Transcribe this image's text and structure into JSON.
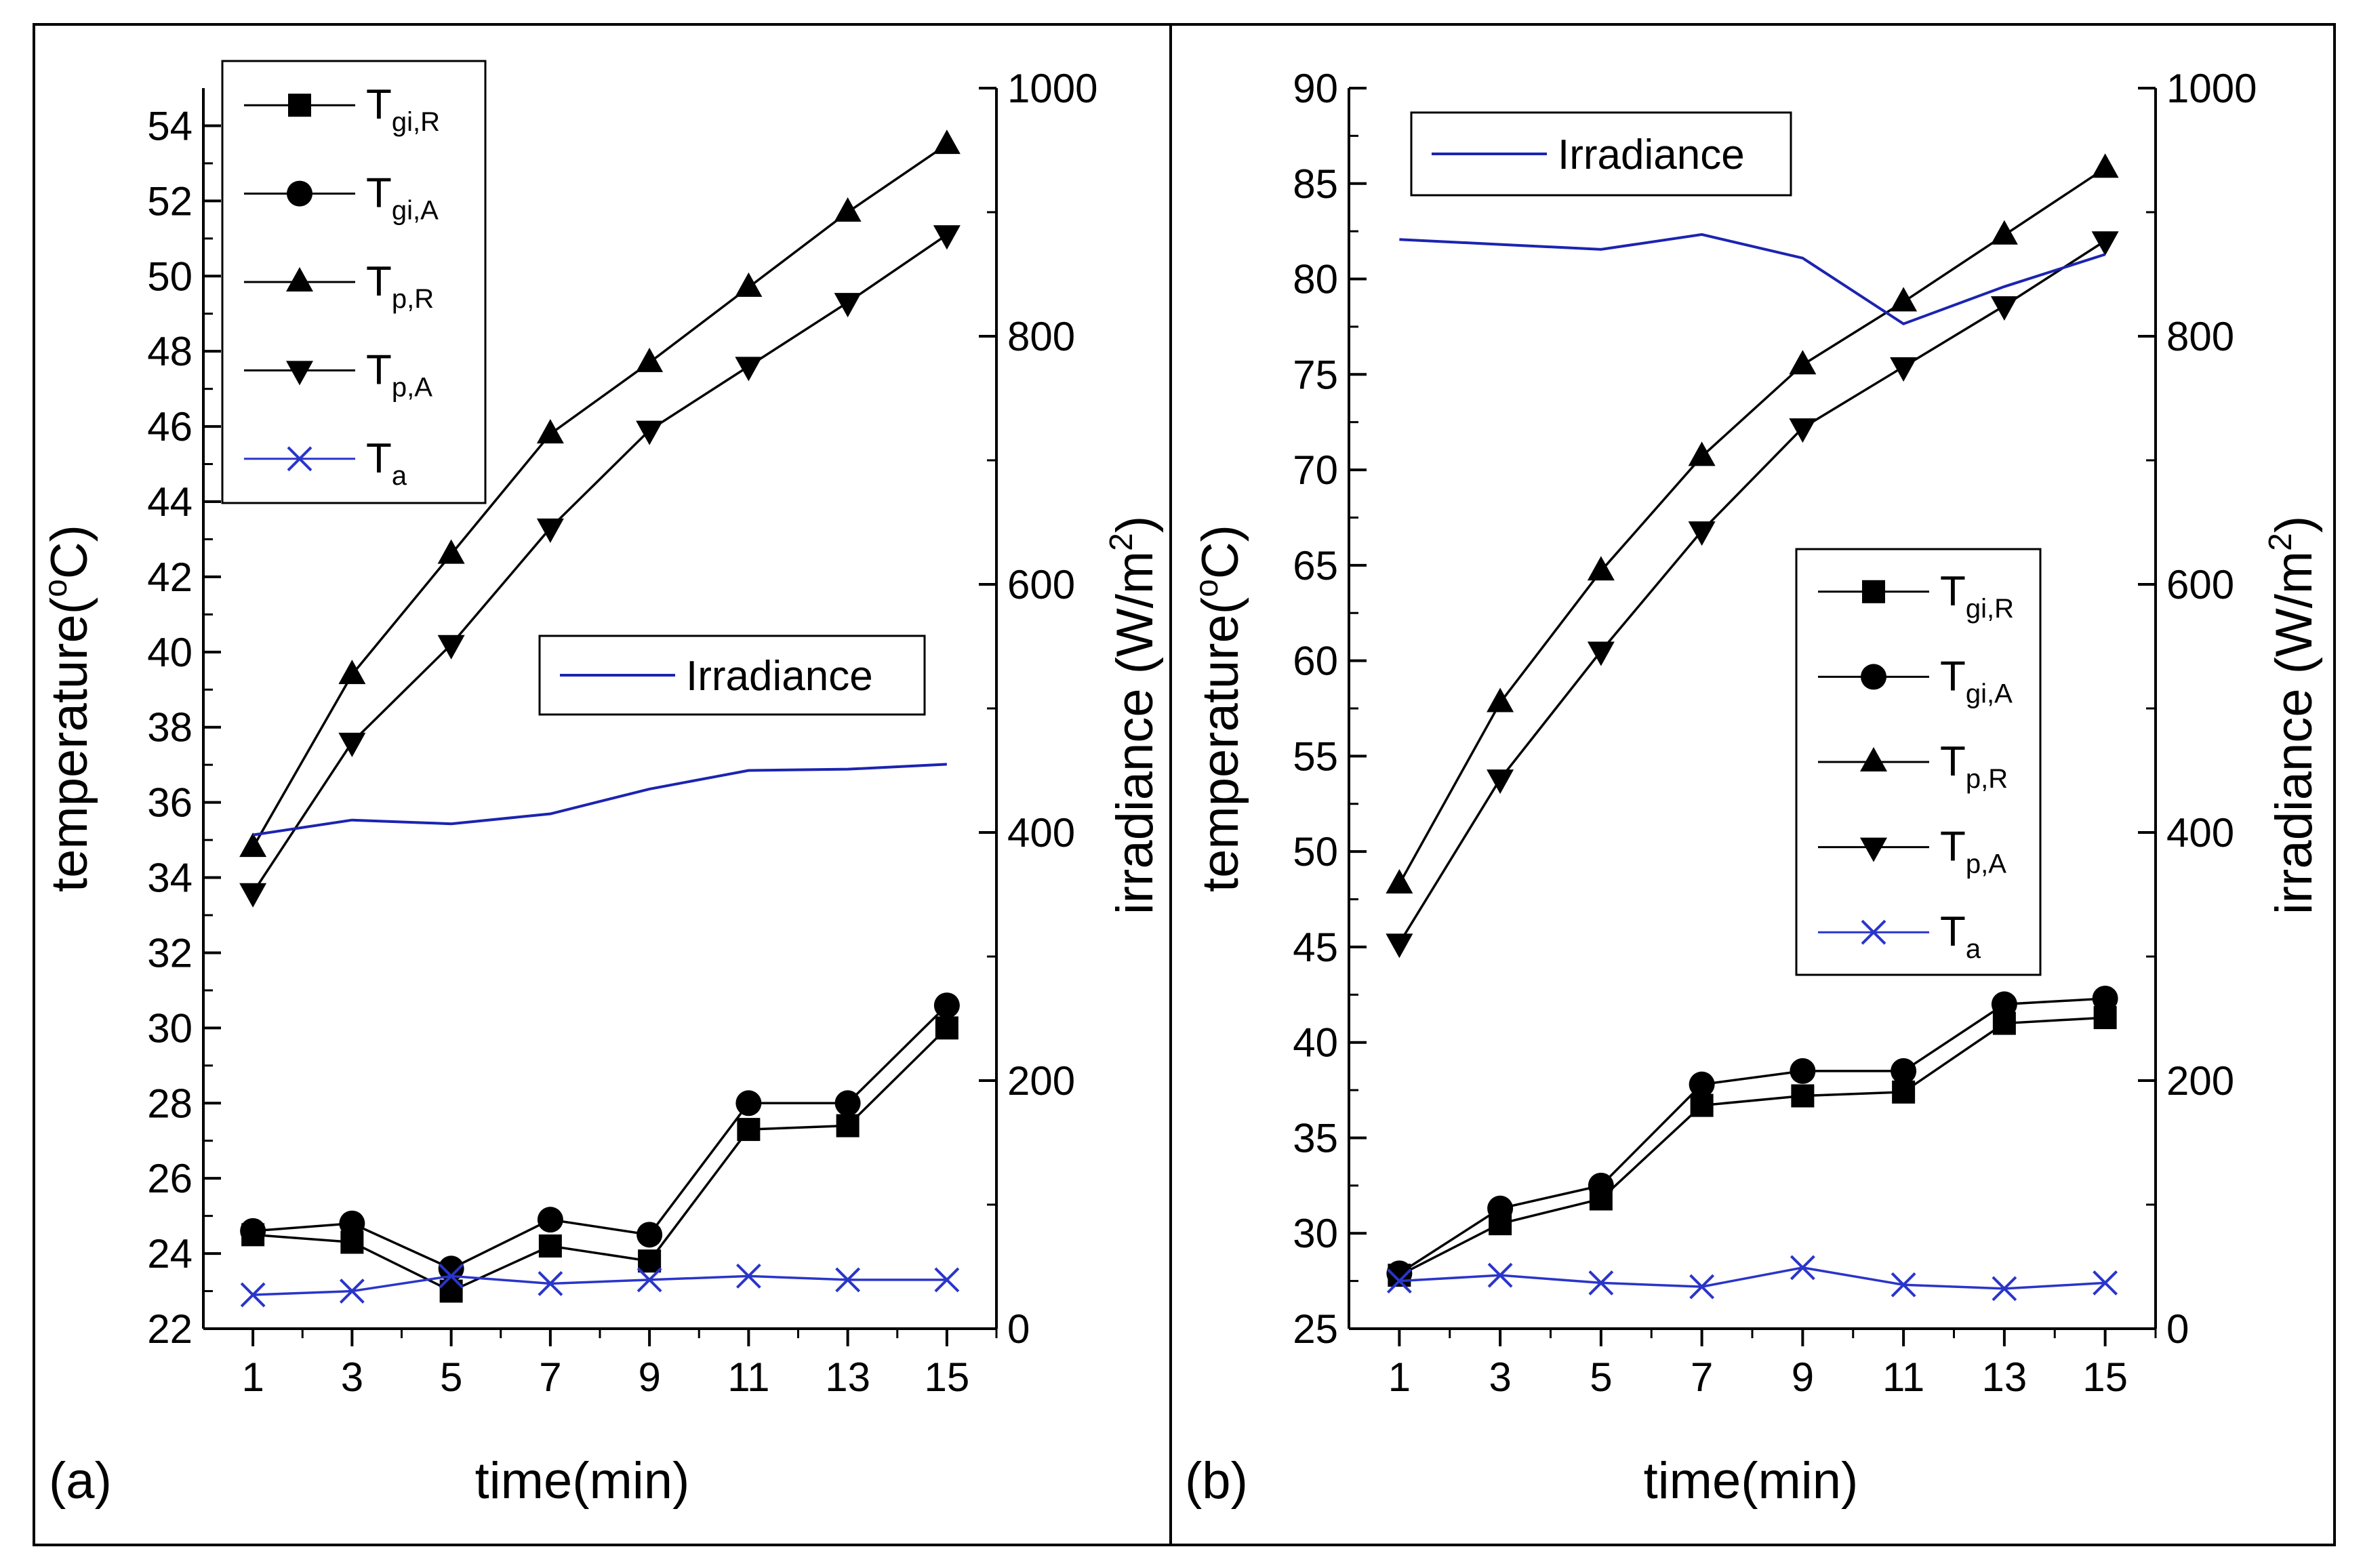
{
  "chart_data": [
    {
      "type": "line",
      "panel_label": "(a)",
      "xlabel": "time(min)",
      "ylabel": "temperature(°C)",
      "y2label": "irradiance (W/m²)",
      "ylabel_main": "temperature(",
      "ylabel_deg": "o",
      "ylabel_unit": "C)",
      "y2label_main": "irradiance (W/m",
      "y2label_sup": "2",
      "y2label_close": ")",
      "x": [
        1,
        3,
        5,
        7,
        9,
        11,
        13,
        15
      ],
      "x_ticks": [
        "1",
        "3",
        "5",
        "7",
        "9",
        "11",
        "13",
        "15"
      ],
      "xlim": [
        0,
        16
      ],
      "ylim": [
        22,
        55
      ],
      "y_ticks": [
        "22",
        "24",
        "26",
        "28",
        "30",
        "32",
        "34",
        "36",
        "38",
        "40",
        "42",
        "44",
        "46",
        "48",
        "50",
        "52",
        "54"
      ],
      "y2lim": [
        0,
        1000
      ],
      "y2_ticks": [
        "0",
        "200",
        "400",
        "600",
        "800",
        "1000"
      ],
      "series": [
        {
          "name": "T gi,R",
          "base": "T",
          "sub": "gi,R",
          "marker": "square",
          "color": "#000000",
          "axis": "left",
          "values": [
            24.5,
            24.3,
            23.0,
            24.2,
            23.8,
            27.3,
            27.4,
            30.0
          ]
        },
        {
          "name": "T gi,A",
          "base": "T",
          "sub": "gi,A",
          "marker": "circle",
          "color": "#000000",
          "axis": "left",
          "values": [
            24.6,
            24.8,
            23.6,
            24.9,
            24.5,
            28.0,
            28.0,
            30.6
          ]
        },
        {
          "name": "T p,R",
          "base": "T",
          "sub": "p,R",
          "marker": "triangle-up",
          "color": "#000000",
          "axis": "left",
          "values": [
            34.8,
            39.4,
            42.6,
            45.8,
            47.7,
            49.7,
            51.7,
            53.5
          ]
        },
        {
          "name": "T p,A",
          "base": "T",
          "sub": "p,A",
          "marker": "triangle-down",
          "color": "#000000",
          "axis": "left",
          "values": [
            33.6,
            37.6,
            40.2,
            43.3,
            45.9,
            47.6,
            49.3,
            51.1
          ]
        },
        {
          "name": "T a",
          "base": "T",
          "sub": "a",
          "marker": "x",
          "color": "#2a35c9",
          "axis": "left",
          "values": [
            22.9,
            23.0,
            23.4,
            23.2,
            23.3,
            23.4,
            23.3,
            23.3
          ]
        },
        {
          "name": "Irradiance",
          "base": "Irradiance",
          "sub": "",
          "marker": "none",
          "color": "#1b24b0",
          "axis": "right",
          "values": [
            398,
            410,
            407,
            415,
            435,
            450,
            451,
            455
          ]
        }
      ],
      "legend_main": {
        "entries": [
          "T gi,R",
          "T gi,A",
          "T p,R",
          "T p,A",
          "T a"
        ],
        "placement": "top-left"
      },
      "legend_irr": {
        "entries": [
          "Irradiance"
        ],
        "placement": "center-right"
      }
    },
    {
      "type": "line",
      "panel_label": "(b)",
      "xlabel": "time(min)",
      "ylabel": "temperature(°C)",
      "y2label": "irradiance (W/m²)",
      "ylabel_main": "temperature(",
      "ylabel_deg": "o",
      "ylabel_unit": "C)",
      "y2label_main": "irradiance (W/m",
      "y2label_sup": "2",
      "y2label_close": ")",
      "x": [
        1,
        3,
        5,
        7,
        9,
        11,
        13,
        15
      ],
      "x_ticks": [
        "1",
        "3",
        "5",
        "7",
        "9",
        "11",
        "13",
        "15"
      ],
      "xlim": [
        0,
        16
      ],
      "ylim": [
        25,
        90
      ],
      "y_ticks": [
        "25",
        "30",
        "35",
        "40",
        "45",
        "50",
        "55",
        "60",
        "65",
        "70",
        "75",
        "80",
        "85",
        "90"
      ],
      "y2lim": [
        0,
        1000
      ],
      "y2_ticks": [
        "0",
        "200",
        "400",
        "600",
        "800",
        "1000"
      ],
      "series": [
        {
          "name": "T gi,R",
          "base": "T",
          "sub": "gi,R",
          "marker": "square",
          "color": "#000000",
          "axis": "left",
          "values": [
            27.8,
            30.5,
            31.8,
            36.7,
            37.2,
            37.4,
            41.0,
            41.3
          ]
        },
        {
          "name": "T gi,A",
          "base": "T",
          "sub": "gi,A",
          "marker": "circle",
          "color": "#000000",
          "axis": "left",
          "values": [
            27.9,
            31.3,
            32.5,
            37.8,
            38.5,
            38.5,
            42.0,
            42.3
          ]
        },
        {
          "name": "T p,R",
          "base": "T",
          "sub": "p,R",
          "marker": "triangle-up",
          "color": "#000000",
          "axis": "left",
          "values": [
            48.3,
            57.8,
            64.7,
            70.7,
            75.5,
            78.8,
            82.3,
            85.8
          ]
        },
        {
          "name": "T p,A",
          "base": "T",
          "sub": "p,A",
          "marker": "triangle-down",
          "color": "#000000",
          "axis": "left",
          "values": [
            45.2,
            53.8,
            60.5,
            66.8,
            72.2,
            75.4,
            78.6,
            82.0
          ]
        },
        {
          "name": "T a",
          "base": "T",
          "sub": "a",
          "marker": "x",
          "color": "#2a35c9",
          "axis": "left",
          "values": [
            27.5,
            27.8,
            27.4,
            27.2,
            28.2,
            27.3,
            27.1,
            27.4
          ]
        },
        {
          "name": "Irradiance",
          "base": "Irradiance",
          "sub": "",
          "marker": "none",
          "color": "#1b24b0",
          "axis": "right",
          "values": [
            878,
            874,
            870,
            882,
            863,
            810,
            840,
            866
          ]
        }
      ],
      "legend_main": {
        "entries": [
          "T gi,R",
          "T gi,A",
          "T p,R",
          "T p,A",
          "T a"
        ],
        "placement": "center-right"
      },
      "legend_irr": {
        "entries": [
          "Irradiance"
        ],
        "placement": "top-left"
      }
    }
  ]
}
